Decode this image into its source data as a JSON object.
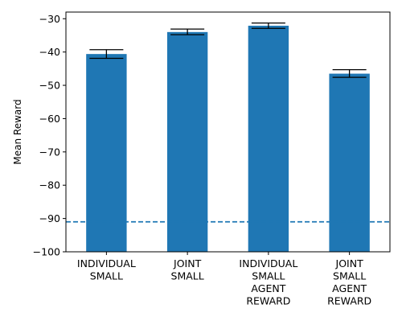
{
  "chart_data": {
    "type": "bar",
    "title": "",
    "xlabel": "",
    "ylabel": "Mean Reward",
    "ylim": [
      -100,
      -28
    ],
    "yticks": [
      -100,
      -90,
      -80,
      -70,
      -60,
      -50,
      -40,
      -30
    ],
    "ytick_labels": [
      "−100",
      "−90",
      "−80",
      "−70",
      "−60",
      "−50",
      "−40",
      "−30"
    ],
    "categories": [
      [
        "INDIVIDUAL",
        "SMALL"
      ],
      [
        "JOINT",
        "SMALL"
      ],
      [
        "INDIVIDUAL",
        "SMALL",
        "AGENT",
        "REWARD"
      ],
      [
        "JOINT",
        "SMALL",
        "AGENT",
        "REWARD"
      ]
    ],
    "values": [
      -40.6,
      -34.0,
      -32.1,
      -46.5
    ],
    "error_low": [
      -41.9,
      -34.8,
      -32.9,
      -47.6
    ],
    "error_high": [
      -39.3,
      -33.1,
      -31.3,
      -45.3
    ],
    "reference_line": {
      "value": -91,
      "style": "dashed"
    },
    "bar_color": "#1f77b4",
    "reference_color": "#1f77b4",
    "grid": false,
    "legend": "none"
  }
}
